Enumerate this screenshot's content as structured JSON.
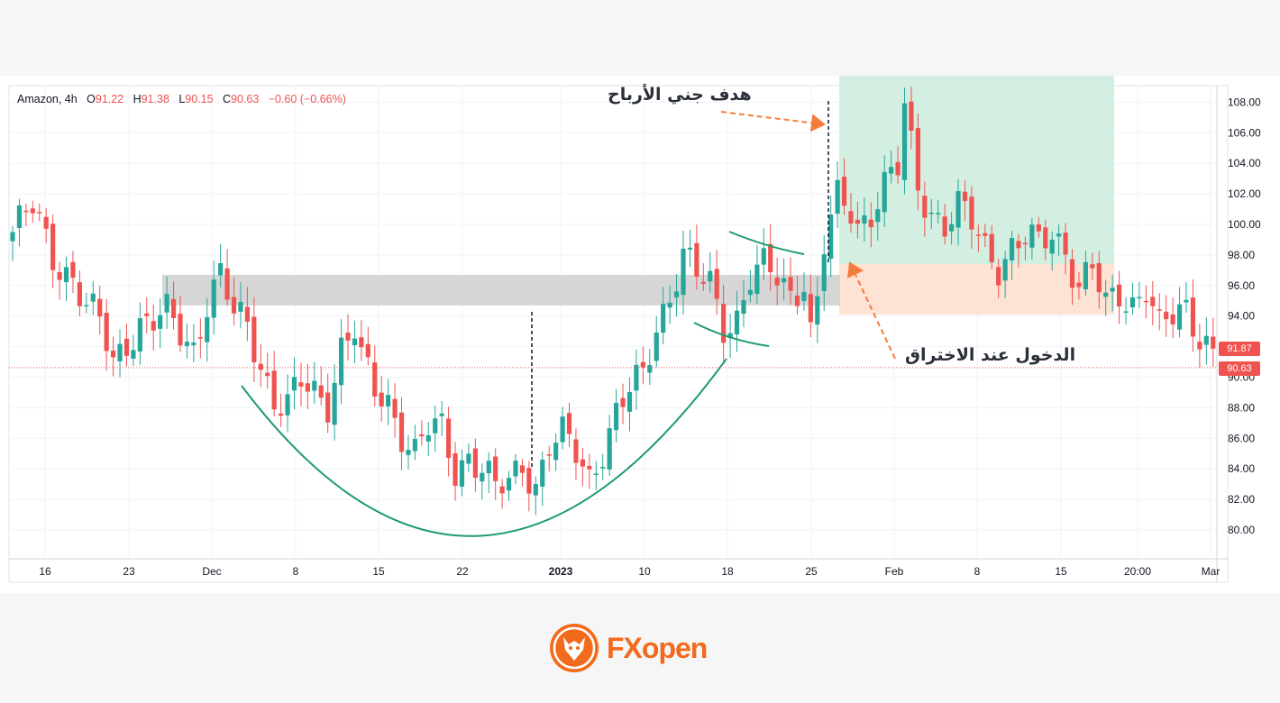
{
  "header": {
    "symbol": "Amazon, 4h",
    "open_label": "O",
    "open": "91.22",
    "high_label": "H",
    "high": "91.38",
    "low_label": "L",
    "low": "90.15",
    "close_label": "C",
    "close": "90.63",
    "change": "−0.60 (−0.66%)"
  },
  "annotations": {
    "take_profit": "هدف جني الأرباح",
    "entry": "الدخول عند الاختراق"
  },
  "price_tags": {
    "last": "91.87",
    "close": "90.63"
  },
  "logo": {
    "text": "FXopen",
    "icon": "fox-head-icon"
  },
  "colors": {
    "up": "#26a69a",
    "down": "#ef5350",
    "cup": "#1e9c6e",
    "resistance_band": "#d4d4d4",
    "target_zone": "#d3efe1",
    "stop_zone": "#fde3d3",
    "arrow": "#f47c3c"
  },
  "chart_data": {
    "type": "candlestick",
    "title": "",
    "timeframe": "4h",
    "x_ticks": [
      "16",
      "23",
      "Dec",
      "8",
      "15",
      "22",
      "2023",
      "10",
      "18",
      "25",
      "Feb",
      "8",
      "15",
      "20:00",
      "Mar"
    ],
    "y_ticks": [
      80,
      82,
      84,
      86,
      88,
      90,
      92,
      94,
      96,
      98,
      100,
      102,
      104,
      106,
      108
    ],
    "ylim": [
      79,
      109
    ],
    "resistance_zone": [
      94.7,
      96.7
    ],
    "target_zone": [
      97.4,
      109
    ],
    "stop_zone": [
      94.1,
      97.4
    ],
    "last_price": 91.87,
    "close_price": 90.63,
    "grid": true,
    "close_path": [
      [
        0,
        99.5
      ],
      [
        3,
        101
      ],
      [
        6,
        98
      ],
      [
        9,
        96.5
      ],
      [
        11,
        94.5
      ],
      [
        13,
        93.5
      ],
      [
        15,
        91
      ],
      [
        17,
        92.5
      ],
      [
        19,
        93.5
      ],
      [
        21,
        93.5
      ],
      [
        23,
        94
      ],
      [
        25,
        93
      ],
      [
        27,
        92
      ],
      [
        29,
        95
      ],
      [
        31,
        96.5
      ],
      [
        33,
        94
      ],
      [
        35,
        93.5
      ],
      [
        37,
        91
      ],
      [
        39,
        88.5
      ],
      [
        41,
        88
      ],
      [
        43,
        89.5
      ],
      [
        45,
        89
      ],
      [
        47,
        88.5
      ],
      [
        49,
        92
      ],
      [
        51,
        93
      ],
      [
        52,
        91
      ],
      [
        54,
        89
      ],
      [
        56,
        88.5
      ],
      [
        58,
        86.5
      ],
      [
        60,
        85
      ],
      [
        62,
        86.5
      ],
      [
        64,
        86.5
      ],
      [
        66,
        84
      ],
      [
        68,
        85
      ],
      [
        70,
        84
      ],
      [
        72,
        82.5
      ],
      [
        74,
        83
      ],
      [
        76,
        84.5
      ],
      [
        78,
        83
      ],
      [
        80,
        85.5
      ],
      [
        82,
        86
      ],
      [
        84,
        85
      ],
      [
        86,
        83.5
      ],
      [
        88,
        85.5
      ],
      [
        90,
        87.5
      ],
      [
        92,
        89
      ],
      [
        94,
        90
      ],
      [
        96,
        93.5
      ],
      [
        98,
        95.5
      ],
      [
        100,
        98
      ],
      [
        102,
        96.5
      ],
      [
        104,
        96
      ],
      [
        106,
        93.5
      ],
      [
        108,
        94
      ],
      [
        110,
        96.5
      ],
      [
        112,
        97
      ],
      [
        114,
        96.5
      ],
      [
        116,
        95.5
      ],
      [
        118,
        96.5
      ],
      [
        119,
        93
      ],
      [
        120,
        95
      ],
      [
        121,
        98.5
      ],
      [
        123,
        101.5
      ],
      [
        125,
        101
      ],
      [
        126,
        100
      ],
      [
        128,
        101
      ],
      [
        130,
        102.5
      ],
      [
        132,
        103.5
      ],
      [
        133,
        107.5
      ],
      [
        135,
        102.5
      ],
      [
        137,
        101
      ],
      [
        139,
        100
      ],
      [
        141,
        101
      ],
      [
        143,
        100
      ],
      [
        145,
        98.5
      ],
      [
        147,
        97.5
      ],
      [
        149,
        98.5
      ],
      [
        151,
        99
      ],
      [
        153,
        98.5
      ],
      [
        155,
        99.5
      ],
      [
        157,
        98.5
      ],
      [
        159,
        96
      ],
      [
        161,
        97
      ],
      [
        163,
        94.5
      ],
      [
        165,
        95.5
      ],
      [
        167,
        95
      ],
      [
        169,
        96
      ],
      [
        171,
        93
      ],
      [
        173,
        93.8
      ],
      [
        175,
        94.5
      ],
      [
        177,
        93
      ],
      [
        179,
        91.87
      ]
    ]
  }
}
